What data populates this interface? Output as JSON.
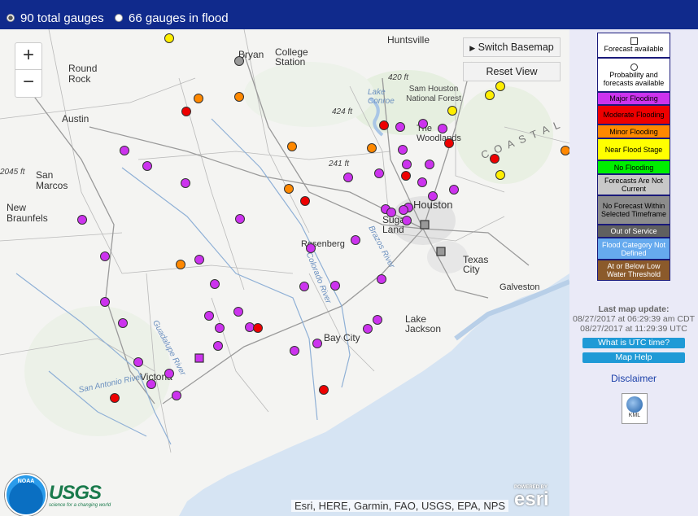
{
  "topbar": {
    "options": [
      {
        "label": "90 total gauges",
        "checked": true
      },
      {
        "label": "66 gauges in flood",
        "checked": false
      }
    ]
  },
  "map": {
    "zoom_in": "+",
    "zoom_out": "−",
    "switch_basemap": "Switch Basemap",
    "reset_view": "Reset View",
    "attribution": "Esri, HERE, Garmin, FAO, USGS, EPA, NPS",
    "logos": {
      "noaa": "NOAA",
      "usgs": "USGS",
      "usgs_tagline": "science for a changing world",
      "esri_powered": "POWERED BY",
      "esri": "esri"
    },
    "labels": {
      "huntsville": "Huntsville",
      "bryan": "Bryan",
      "college_station": "College Station",
      "round_rock": "Round Rock",
      "austin": "Austin",
      "san_marcos": "San Marcos",
      "new_braunfels": "New Braunfels",
      "sam_houston": "Sam Houston National Forest",
      "lake_conroe": "Lake Conroe",
      "the_woodlands": "The Woodlands",
      "houston": "Houston",
      "sugar_land": "Sugar Land",
      "rosenberg": "Rosenberg",
      "texas_city": "Texas City",
      "galveston": "Galveston",
      "lake_jackson": "Lake Jackson",
      "bay_city": "Bay City",
      "victoria": "Victoria",
      "brazos_river": "Brazos River",
      "colorado_river": "Colorado River",
      "guadalupe_river": "Guadalupe River",
      "san_antonio_river": "San Antonio River",
      "elev_420": "420 ft",
      "elev_424": "424 ft",
      "elev_241": "241 ft",
      "elev_2045": "2045 ft",
      "coastal": "C O A S T A L"
    },
    "gauge_colors": {
      "major": "#cc33ee",
      "moderate": "#ee0000",
      "minor": "#ff8800",
      "near": "#ffee00",
      "not_current": "#999999",
      "forecast": "#cc33ee"
    }
  },
  "legend": {
    "forecast": "Forecast available",
    "probability": "Probability and forecasts available",
    "major": "Major Flooding",
    "moderate": "Moderate Flooding",
    "minor": "Minor Flooding",
    "near": "Near Flood Stage",
    "no_flooding": "No Flooding",
    "not_current": "Forecasts Are Not Current",
    "no_forecast": "No Forecast Within Selected Timeframe",
    "out_of_service": "Out of Service",
    "not_defined": "Flood Category Not Defined",
    "low_water": "At or Below Low Water Threshold",
    "colors": {
      "major": "#cc33ee",
      "moderate": "#ee0000",
      "minor": "#ff8800",
      "near": "#ffff00",
      "no_flooding": "#00ee00",
      "not_current": "#c8c8c8",
      "no_forecast": "#8c8c8c",
      "out_of_service": "#606060",
      "not_defined": "#66aaee",
      "low_water": "#8b5a2b"
    }
  },
  "sidebar": {
    "update_label": "Last map update:",
    "update_cdt": "08/27/2017 at 06:29:39 am CDT",
    "update_utc": "08/27/2017 at 11:29:39 UTC",
    "utc_button": "What is UTC time?",
    "help_button": "Map Help",
    "disclaimer": "Disclaimer",
    "kml": "KML"
  }
}
